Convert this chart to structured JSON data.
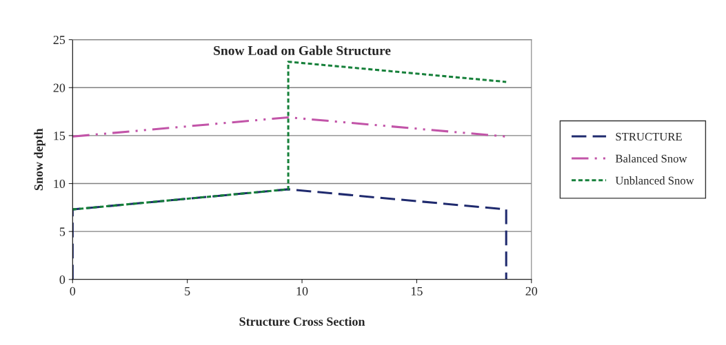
{
  "chart_data": {
    "type": "line",
    "title": "Snow Load on Gable Structure",
    "xlabel": "Structure Cross Section",
    "ylabel": "Snow depth",
    "series": [
      {
        "name": "STRUCTURE",
        "color": "#1f2a6e",
        "line_style": "dashed",
        "x": [
          0,
          0,
          9.4,
          18.9,
          18.9
        ],
        "values": [
          0,
          7.3,
          9.4,
          7.3,
          0
        ]
      },
      {
        "name": "Balanced Snow",
        "color": "#c254a8",
        "line_style": "dashdot",
        "x": [
          0,
          9.4,
          18.9
        ],
        "values": [
          14.9,
          16.9,
          14.9
        ]
      },
      {
        "name": "Unblanced Snow",
        "color": "#16803a",
        "line_style": "dotted",
        "x": [
          0,
          9.4,
          9.4,
          18.9
        ],
        "values": [
          7.3,
          9.4,
          22.7,
          20.6
        ]
      }
    ],
    "xlim": [
      0,
      20
    ],
    "xticks": [
      0,
      5,
      10,
      15,
      20
    ],
    "ylim": [
      0,
      25
    ],
    "yticks": [
      0,
      5,
      10,
      15,
      20,
      25
    ],
    "grid": "y",
    "legend": "right",
    "marker": "none"
  }
}
